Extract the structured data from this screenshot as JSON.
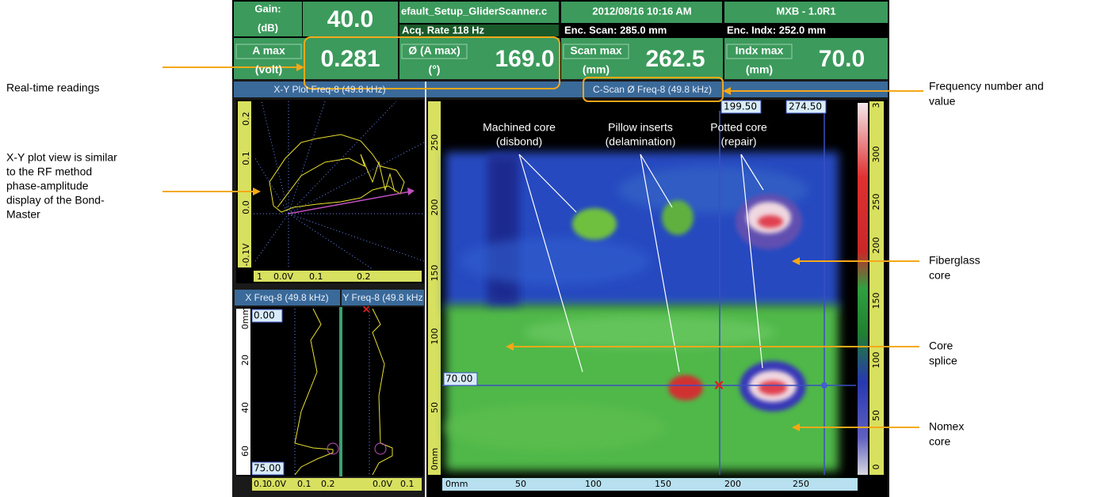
{
  "header": {
    "gain_label": "Gain:",
    "gain_unit": "(dB)",
    "gain_value": "40.0",
    "setup": "efault_Setup_GliderScanner.c",
    "datetime": "2012/08/16 10:16 AM",
    "version": "MXB - 1.0R1",
    "acq_rate": "Acq. Rate 118  Hz",
    "enc_scan": "Enc. Scan:  285.0 mm",
    "enc_indx": "Enc. Indx:  252.0 mm"
  },
  "readings": [
    {
      "label": "A max",
      "unit": "(volt)",
      "value": "0.281"
    },
    {
      "label": "Ø (A max)",
      "unit": "(°)",
      "value": "169.0"
    },
    {
      "label": "Scan max",
      "unit": "(mm)",
      "value": "262.5"
    },
    {
      "label": "Indx max",
      "unit": "(mm)",
      "value": "70.0"
    }
  ],
  "panels": {
    "xy_title": "X-Y Plot Freq-8 (49.8 kHz)",
    "cscan_title": "C-Scan Ø Freq-8 (49.8 kHz)",
    "x_title": "X Freq-8 (49.8 kHz)",
    "y_title": "Y Freq-8 (49.8 kHz"
  },
  "xy_plot": {
    "y_ticks": [
      "0.2",
      "0.1",
      "0.0",
      "-0.1V"
    ],
    "x_ticks": [
      "1",
      "0.0V",
      "0.1",
      "0.2"
    ]
  },
  "strips": {
    "cursor_top": "0.00",
    "cursor_bottom": "75.00",
    "y_ticks": [
      "0mm",
      "20",
      "40",
      "60"
    ],
    "x_ticks_left": [
      "0.1",
      "0.0V",
      "0.1",
      "0.2"
    ],
    "x_ticks_right": [
      "0.0V",
      "0.1"
    ]
  },
  "cscan": {
    "cursor_x1": "199.50",
    "cursor_x2": "274.50",
    "cursor_y": "70.00",
    "y_ticks": [
      "0mm",
      "50",
      "100",
      "150",
      "200",
      "250"
    ],
    "x_ticks": [
      "0mm",
      "50",
      "100",
      "150",
      "200",
      "250"
    ],
    "color_ticks": [
      "0",
      "50",
      "100",
      "150",
      "200",
      "250",
      "300",
      "3"
    ],
    "labels": [
      [
        "Machined core",
        "(disbond)"
      ],
      [
        "Pillow inserts",
        "(delamination)"
      ],
      [
        "Potted core",
        "(repair)"
      ]
    ]
  },
  "callouts": {
    "readings": "Real-time readings",
    "xy": [
      "X-Y plot view is similar",
      "to the RF method",
      "phase-amplitude",
      "display of the Bond-",
      "Master"
    ],
    "frequency": [
      "Frequency number and",
      "value"
    ],
    "fiberglass": [
      "Fiberglass",
      "core"
    ],
    "splice": [
      "Core",
      "splice"
    ],
    "nomex": [
      "Nomex",
      "core"
    ]
  }
}
